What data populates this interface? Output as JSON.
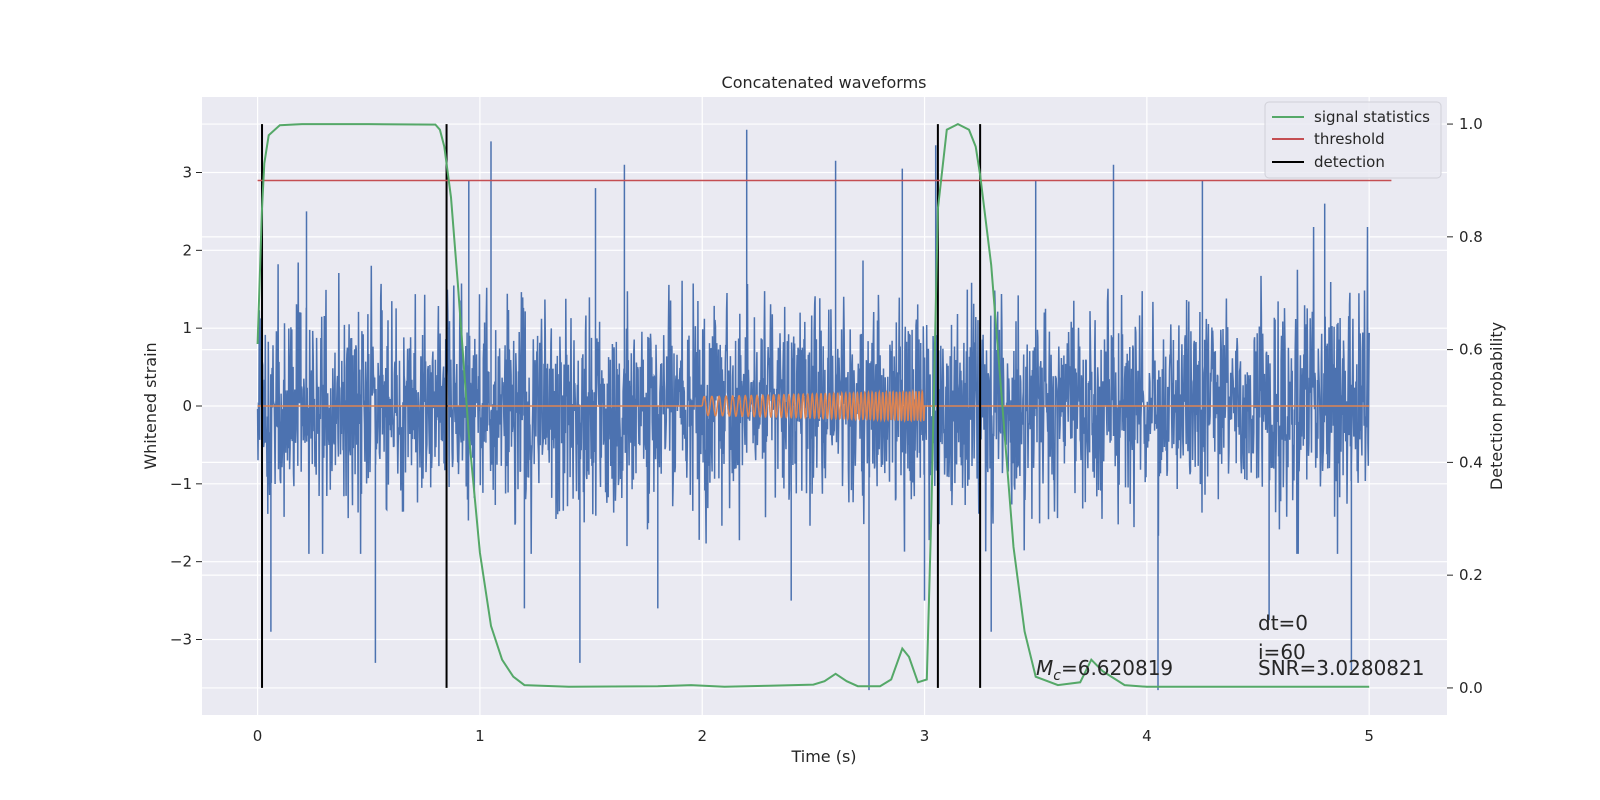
{
  "chart_data": {
    "type": "line",
    "title": "Concatenated waveforms",
    "xlabel": "Time (s)",
    "ylabel": "Whitened strain",
    "y2label": "Detection probability",
    "xlim": [
      -0.25,
      5.35
    ],
    "ylim": [
      -3.97,
      3.97
    ],
    "y2lim": [
      -0.048,
      1.048
    ],
    "xticks": [
      0,
      1,
      2,
      3,
      4,
      5
    ],
    "yticks": [
      -3,
      -2,
      -1,
      0,
      1,
      2,
      3
    ],
    "y2ticks": [
      0.0,
      0.2,
      0.4,
      0.6,
      0.8,
      1.0
    ],
    "x_tick_labels": [
      "0",
      "1",
      "2",
      "3",
      "4",
      "5"
    ],
    "y_tick_labels": [
      "−3",
      "−2",
      "−1",
      "0",
      "1",
      "2",
      "3"
    ],
    "y2_tick_labels": [
      "0.0",
      "0.2",
      "0.4",
      "0.6",
      "0.8",
      "1.0"
    ],
    "grid": true,
    "legend_position": "top-right",
    "legend": [
      "signal statistics",
      "threshold",
      "detection"
    ],
    "colors": {
      "strain": "#4c72b0",
      "template": "#dd8452",
      "signal_statistics": "#55a868",
      "threshold": "#c44e52",
      "detection": "#000000",
      "background": "#eaeaf2"
    },
    "strain": {
      "x_range": [
        0,
        5
      ],
      "envelope": [
        -1.9,
        2.3
      ],
      "spike_times": [
        0.06,
        0.22,
        0.53,
        0.95,
        1.05,
        1.2,
        1.45,
        1.52,
        1.65,
        1.8,
        2.2,
        2.4,
        2.6,
        2.75,
        2.9,
        3.0,
        3.05,
        3.3,
        3.5,
        3.85,
        4.05,
        4.25,
        4.55,
        4.8,
        4.92
      ],
      "spike_values": [
        -2.9,
        2.5,
        -3.3,
        2.9,
        3.4,
        -2.6,
        -3.3,
        2.8,
        3.1,
        -2.6,
        3.55,
        -2.5,
        3.15,
        -3.65,
        3.05,
        -2.5,
        3.35,
        -2.9,
        2.9,
        3.1,
        -3.65,
        2.9,
        -2.75,
        2.6,
        -3.4
      ]
    },
    "template": {
      "chirp_start": 2.0,
      "chirp_end": 3.0,
      "amplitude_start": 0.12,
      "amplitude_end": 0.19
    },
    "signal_statistics": {
      "x": [
        0.0,
        0.02,
        0.03,
        0.05,
        0.1,
        0.2,
        0.5,
        0.8,
        0.82,
        0.84,
        0.87,
        0.9,
        0.95,
        1.0,
        1.05,
        1.1,
        1.15,
        1.2,
        1.4,
        1.8,
        1.95,
        2.1,
        2.3,
        2.5,
        2.55,
        2.6,
        2.65,
        2.7,
        2.8,
        2.85,
        2.9,
        2.93,
        2.97,
        3.01,
        3.03,
        3.06,
        3.1,
        3.15,
        3.2,
        3.23,
        3.25,
        3.3,
        3.35,
        3.4,
        3.45,
        3.5,
        3.6,
        3.7,
        3.75,
        3.8,
        3.9,
        4.0,
        4.5,
        5.0
      ],
      "y": [
        0.61,
        0.85,
        0.93,
        0.98,
        0.998,
        1.0,
        1.0,
        0.999,
        0.99,
        0.96,
        0.87,
        0.72,
        0.45,
        0.24,
        0.11,
        0.05,
        0.02,
        0.005,
        0.002,
        0.003,
        0.005,
        0.002,
        0.004,
        0.006,
        0.012,
        0.025,
        0.012,
        0.003,
        0.003,
        0.015,
        0.07,
        0.055,
        0.01,
        0.015,
        0.3,
        0.85,
        0.99,
        1.0,
        0.99,
        0.96,
        0.91,
        0.75,
        0.5,
        0.25,
        0.1,
        0.02,
        0.005,
        0.01,
        0.05,
        0.03,
        0.005,
        0.002,
        0.002,
        0.002
      ]
    },
    "threshold": {
      "value": 0.9,
      "x_range": [
        0.0,
        5.1
      ]
    },
    "detections": [
      0.02,
      0.85,
      3.06,
      3.25
    ],
    "annotations": {
      "mc": "=6.620819",
      "mc_symbol": "M",
      "mc_subscript": "c",
      "dt": "dt=0",
      "i": "i=60",
      "snr": "SNR=3.0280821"
    }
  }
}
